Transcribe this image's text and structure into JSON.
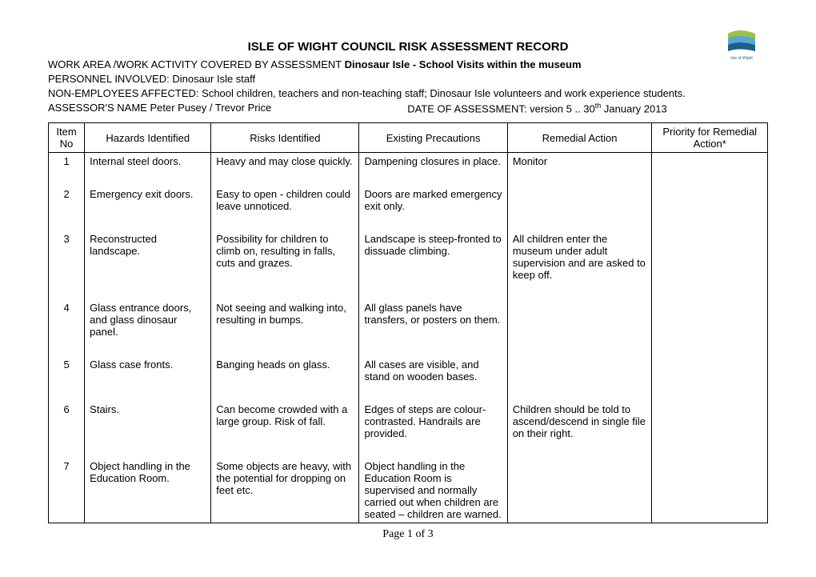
{
  "logo": {
    "bg": "#ffffff",
    "top": "#9cc23a",
    "mid": "#5aa6d6",
    "bot": "#1f5e85",
    "text_color": "#1f5e85",
    "caption": "Isle of Wight"
  },
  "title": "ISLE OF WIGHT COUNCIL RISK ASSESSMENT RECORD",
  "meta": {
    "work_area_label": "WORK AREA /WORK ACTIVITY COVERED BY ASSESSMENT   ",
    "work_area_value": "Dinosaur Isle   - School Visits within the museum",
    "personnel_label": "PERSONNEL INVOLVED:       ",
    "personnel_value": "Dinosaur Isle staff",
    "non_emp_label": "NON-EMPLOYEES AFFECTED:      ",
    "non_emp_value": "School children, teachers and non-teaching staff; Dinosaur Isle volunteers and work experience students.",
    "assessor_label": "ASSESSOR'S NAME      ",
    "assessor_value": "Peter Pusey / Trevor Price",
    "date_label": "DATE OF ASSESSMENT:   ",
    "date_value_pre": "version 5 .. 30",
    "date_value_sup": "th",
    "date_value_post": " January 2013"
  },
  "columns": [
    "Item No",
    "Hazards Identified",
    "Risks Identified",
    "Existing Precautions",
    "Remedial Action",
    "Priority for Remedial Action*"
  ],
  "rows": [
    {
      "no": "1",
      "hazard": "Internal steel doors.",
      "risk": "Heavy and may close quickly.",
      "precaution": "Dampening closures in place.",
      "remedial": "Monitor",
      "priority": ""
    },
    {
      "no": "2",
      "hazard": "Emergency exit doors.",
      "risk": "Easy to open - children could leave unnoticed.",
      "precaution": "Doors are marked emergency exit only.",
      "remedial": "",
      "priority": ""
    },
    {
      "no": "3",
      "hazard": "Reconstructed landscape.",
      "risk": "Possibility for children to climb on, resulting in falls, cuts and grazes.",
      "precaution": "Landscape is steep-fronted to dissuade climbing.",
      "remedial": "All children enter the museum under adult supervision and are asked to keep off.",
      "priority": ""
    },
    {
      "no": "4",
      "hazard": "Glass entrance doors, and glass dinosaur panel.",
      "risk": "Not seeing and walking into, resulting in bumps.",
      "precaution": "All glass panels have transfers, or posters on them.",
      "remedial": "",
      "priority": ""
    },
    {
      "no": "5",
      "hazard": "Glass case fronts.",
      "risk": "Banging heads on glass.",
      "precaution": "All cases are visible, and stand on wooden bases.",
      "remedial": "",
      "priority": ""
    },
    {
      "no": "6",
      "hazard": "Stairs.",
      "risk": "Can become crowded with a large group.  Risk of fall.",
      "precaution": "Edges of steps are colour-contrasted.  Handrails are provided.",
      "remedial": "Children should be told to ascend/descend in single file on their right.",
      "priority": ""
    },
    {
      "no": "7",
      "hazard": "Object handling in the Education Room.",
      "risk": "Some objects are heavy, with the potential for dropping on feet etc.",
      "precaution": "Object handling in the Education Room is supervised and normally carried out when children are seated – children are warned.",
      "remedial": "",
      "priority": ""
    }
  ],
  "footer": "Page 1 of 3"
}
